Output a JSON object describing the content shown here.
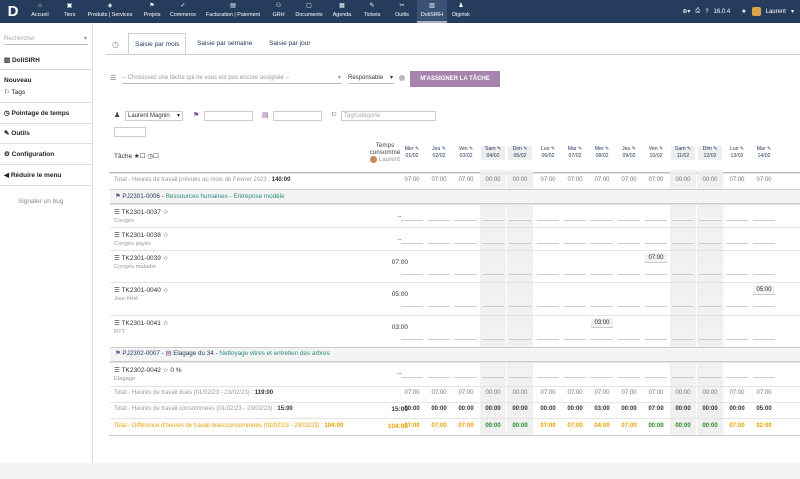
{
  "menu": [
    {
      "icon": "⌂",
      "label": "Accueil"
    },
    {
      "icon": "▣",
      "label": "Tiers"
    },
    {
      "icon": "◈",
      "label": "Produits | Services"
    },
    {
      "icon": "⚑",
      "label": "Projets"
    },
    {
      "icon": "✓",
      "label": "Commerce"
    },
    {
      "icon": "▤",
      "label": "Facturation | Paiement"
    },
    {
      "icon": "⚇",
      "label": "GRH"
    },
    {
      "icon": "▢",
      "label": "Documents"
    },
    {
      "icon": "▦",
      "label": "Agenda"
    },
    {
      "icon": "✎",
      "label": "Tickets"
    },
    {
      "icon": "✂",
      "label": "Outils"
    },
    {
      "icon": "▥",
      "label": "DoliSIRH"
    },
    {
      "icon": "♟",
      "label": "Digirisk"
    }
  ],
  "topbar": {
    "version": "16.0.4",
    "user": "Laurent"
  },
  "sidebar": {
    "search_placeholder": "Rechercher",
    "module": "DoliSIRH",
    "new": "Nouveau",
    "tags": "Tags",
    "timesheet": "Pointage de temps",
    "tools": "Outils",
    "config": "Configuration",
    "reduce": "Réduire le menu",
    "bug": "Signaler un bug"
  },
  "tabs": [
    "Saisie par mois",
    "Saisie par semaine",
    "Saisie par jour"
  ],
  "assign": {
    "task_placeholder": "-- Choisissez une tâche qui ne vous est pas encore assignée --",
    "role": "Responsable",
    "button": "M'ASSIGNER LA TÂCHE"
  },
  "filters": {
    "user": "Laurent Magnin",
    "category_placeholder": "Tag/catégorie"
  },
  "col_task": "Tâche",
  "col_time": "Temps consommé",
  "col_time_user": "Laurent",
  "days": [
    {
      "day": "Mer",
      "date": "01/02"
    },
    {
      "day": "Jeu",
      "date": "02/02"
    },
    {
      "day": "Ven",
      "date": "03/02"
    },
    {
      "day": "Sam",
      "date": "04/02"
    },
    {
      "day": "Dim",
      "date": "05/02"
    },
    {
      "day": "Lun",
      "date": "06/02"
    },
    {
      "day": "Mar",
      "date": "07/02"
    },
    {
      "day": "Mer",
      "date": "08/02"
    },
    {
      "day": "Jeu",
      "date": "09/02"
    },
    {
      "day": "Ven",
      "date": "10/02"
    },
    {
      "day": "Sam",
      "date": "11/02"
    },
    {
      "day": "Dim",
      "date": "12/02"
    },
    {
      "day": "Lun",
      "date": "13/02"
    },
    {
      "day": "Mar",
      "date": "14/02"
    }
  ],
  "planned": {
    "label": "Total - Heures de travail prévues au mois de Février 2023 :",
    "value": "140:00",
    "cells": [
      "07:00",
      "07:00",
      "07:00",
      "00:00",
      "00:00",
      "07:00",
      "07:00",
      "07:00",
      "07:00",
      "07:00",
      "00:00",
      "00:00",
      "07:00",
      "07:00"
    ]
  },
  "project1": {
    "ref": "PJ2301-0006",
    "name": "Ressources humaines - Entreprise modèle"
  },
  "tasks1": [
    {
      "ref": "TK2301-0037",
      "label": "Congés",
      "total": "--:--",
      "entry": ""
    },
    {
      "ref": "TK2301-0038",
      "label": "Congés payés",
      "total": "--:--",
      "entry": ""
    },
    {
      "ref": "TK2301-0039",
      "label": "Congés maladie",
      "total": "07:00",
      "entry": "07:00"
    },
    {
      "ref": "TK2301-0040",
      "label": "Jour férié",
      "total": "05:00",
      "entry": "05:00"
    },
    {
      "ref": "TK2301-0041",
      "label": "RTT",
      "total": "03:00",
      "entry": "03:00"
    }
  ],
  "project2": {
    "ref": "PJ2302-0007",
    "sep": " - ",
    "site": "Elagage du 34",
    "name": "Nettoyage vitres et entretien des arbres"
  },
  "task2": {
    "ref": "TK2302-0042",
    "progress": "0 %",
    "label": "Elagage",
    "total": "--:--"
  },
  "due": {
    "label": "Total - Heures de travail dues (01/02/23 - 23/02/23) :",
    "value": "119:00",
    "cells": [
      "07:00",
      "07:00",
      "07:00",
      "00:00",
      "00:00",
      "07:00",
      "07:00",
      "07:00",
      "07:00",
      "07:00",
      "00:00",
      "00:00",
      "07:00",
      "07:00"
    ]
  },
  "consumed": {
    "label": "Total - Heures de travail consommées (01/02/23 - 23/02/23) :",
    "value": "15:00",
    "total": "15:00",
    "cells": [
      "00:00",
      "00:00",
      "00:00",
      "00:00",
      "00:00",
      "00:00",
      "00:00",
      "03:00",
      "00:00",
      "07:00",
      "00:00",
      "00:00",
      "00:00",
      "05:00"
    ]
  },
  "diff": {
    "label": "Total - Différence d'heures de travail dues/consommées (01/02/23 - 23/02/23) :",
    "value": "104:00",
    "total": "104:00",
    "cells": [
      "07:00",
      "07:00",
      "07:00",
      "00:00",
      "00:00",
      "07:00",
      "07:00",
      "04:00",
      "07:00",
      "00:00",
      "00:00",
      "00:00",
      "07:00",
      "02:00"
    ]
  },
  "colors": {
    "topbar": "#263c5c",
    "button": "#a684ad",
    "orange": "#e8a000",
    "green": "#2a8a2a"
  }
}
